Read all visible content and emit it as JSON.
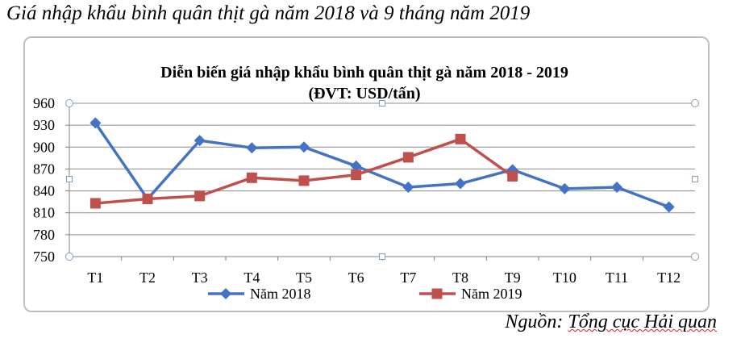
{
  "page": {
    "heading": "Giá nhập khẩu bình quân thịt gà năm 2018 và 9 tháng năm 2019",
    "source_prefix": "Nguồn: ",
    "source_name": "Tổng cục Hải quan"
  },
  "chart_data": {
    "type": "line",
    "title": "Diễn biến giá nhập khẩu bình quân thịt gà năm 2018 - 2019",
    "subtitle": "(ĐVT: USD/tấn)",
    "categories": [
      "T1",
      "T2",
      "T3",
      "T4",
      "T5",
      "T6",
      "T7",
      "T8",
      "T9",
      "T10",
      "T11",
      "T12"
    ],
    "ylim": [
      750,
      960
    ],
    "yticks": [
      750,
      780,
      810,
      840,
      870,
      900,
      930,
      960
    ],
    "grid": true,
    "legend_position": "bottom",
    "series": [
      {
        "name": "Năm 2018",
        "color": "#4472c4",
        "marker": "diamond",
        "values": [
          933,
          829,
          909,
          899,
          900,
          874,
          845,
          850,
          869,
          843,
          845,
          818
        ]
      },
      {
        "name": "Năm 2019",
        "color": "#c0504d",
        "marker": "square",
        "values": [
          823,
          829,
          833,
          858,
          854,
          862,
          886,
          911,
          860,
          null,
          null,
          null
        ]
      }
    ]
  }
}
